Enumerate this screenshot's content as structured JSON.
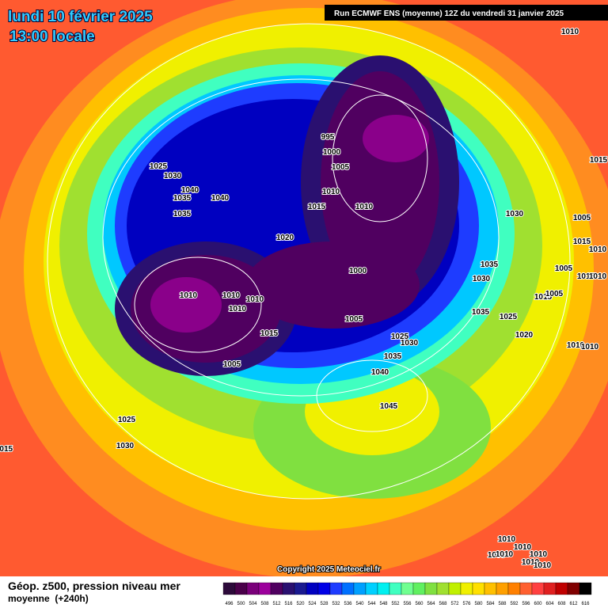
{
  "header": {
    "date": "lundi 10 février 2025",
    "time": "13:00 locale",
    "run": "Run ECMWF ENS (moyenne) 12Z du vendredi 31 janvier 2025"
  },
  "map": {
    "isobar_labels": [
      1010,
      1025,
      1030,
      1040,
      1035,
      1040,
      1035,
      995,
      1000,
      1005,
      1010,
      1015,
      1010,
      1030,
      1005,
      1020,
      1015,
      1010,
      1035,
      1005,
      1015,
      1010,
      1030,
      1000,
      1010,
      1010,
      1010,
      1010,
      1015,
      1005,
      1035,
      1025,
      1005,
      1020,
      1015,
      1025,
      1030,
      1010,
      1010,
      1035,
      1005,
      1040,
      1045,
      1025,
      1030,
      1015,
      1015,
      1010,
      1010,
      1005,
      1010,
      1010,
      1010,
      1010
    ]
  },
  "copyright": "Copyright 2025 Meteociel.fr",
  "footer": {
    "title": "Géop. z500, pression niveau mer",
    "subtitle": "moyenne  (+240h)"
  },
  "colorbar": {
    "levels": [
      496,
      500,
      504,
      508,
      512,
      516,
      520,
      524,
      528,
      532,
      536,
      540,
      544,
      548,
      552,
      556,
      560,
      564,
      568,
      572,
      576,
      580,
      584,
      588,
      592,
      596,
      600,
      604,
      608,
      612,
      616
    ],
    "colors": [
      "#2d0a3a",
      "#4a004a",
      "#7a007a",
      "#9c009c",
      "#500060",
      "#2a1070",
      "#1a1a90",
      "#0000c0",
      "#0000e6",
      "#1e3cff",
      "#0070ff",
      "#00a0ff",
      "#00d0ff",
      "#00f0f0",
      "#40ffc0",
      "#70ff90",
      "#60f060",
      "#80e040",
      "#a0e030",
      "#c0f000",
      "#f0f000",
      "#ffe000",
      "#ffc000",
      "#ffa000",
      "#ff8000",
      "#ff6030",
      "#ff4040",
      "#e02020",
      "#c00000",
      "#800000",
      "#000000"
    ]
  }
}
